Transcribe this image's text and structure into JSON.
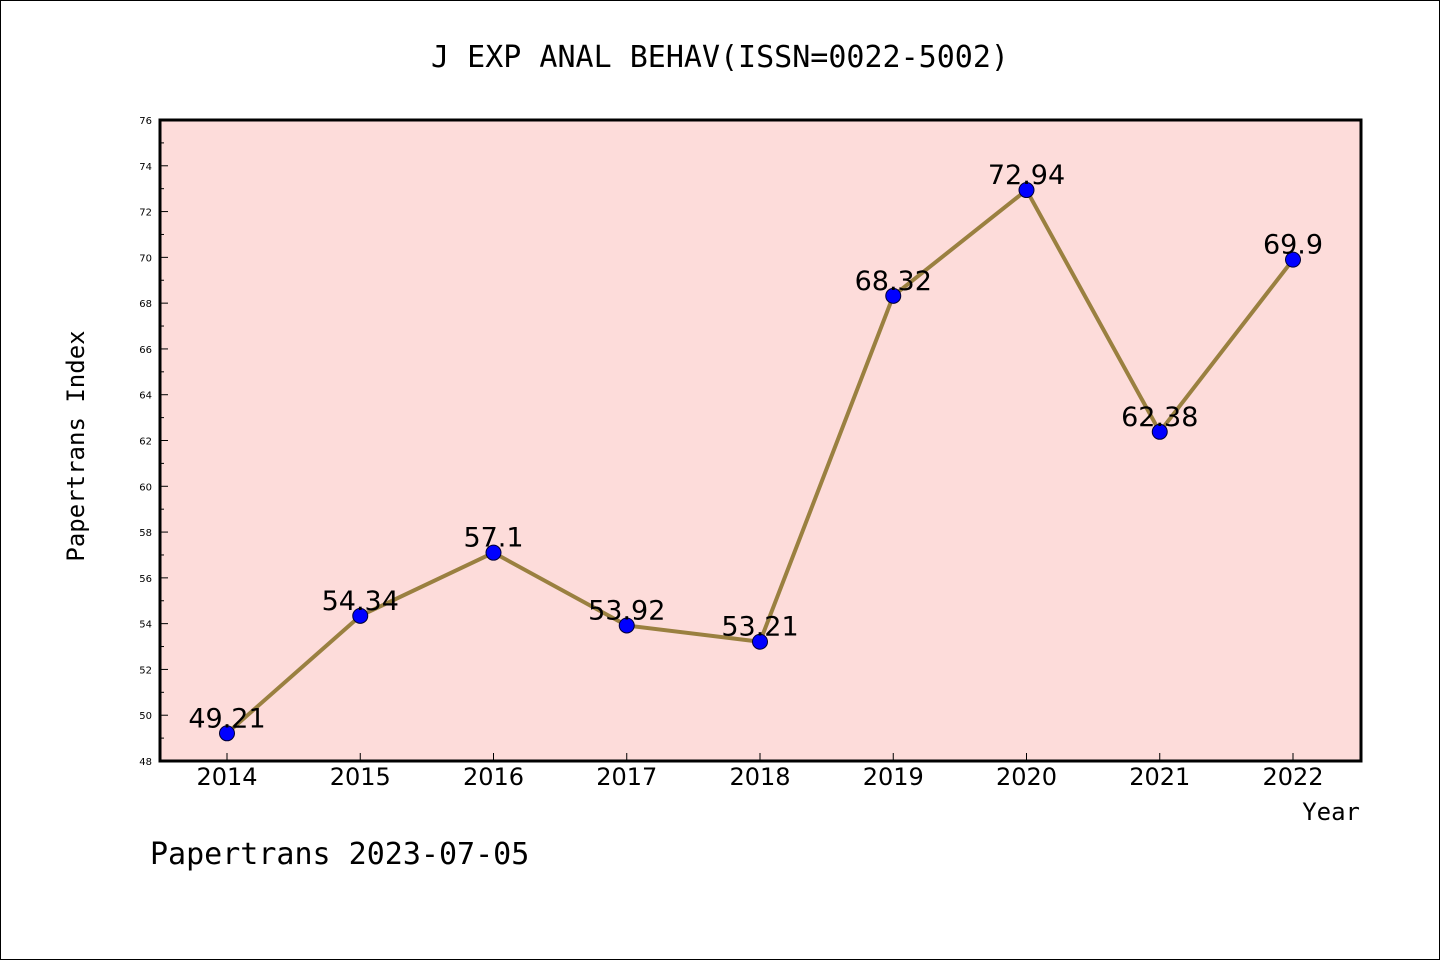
{
  "chart_data": {
    "type": "line",
    "title": "J EXP ANAL BEHAV(ISSN=0022-5002)",
    "xlabel": "Year",
    "ylabel": "Papertrans Index",
    "categories": [
      "2014",
      "2015",
      "2016",
      "2017",
      "2018",
      "2019",
      "2020",
      "2021",
      "2022"
    ],
    "series": [
      {
        "values": [
          49.21,
          54.34,
          57.1,
          53.92,
          53.21,
          68.32,
          72.94,
          62.38,
          69.9
        ],
        "labels": [
          "49.21",
          "54.34",
          "57.1",
          "53.92",
          "53.21",
          "68.32",
          "72.94",
          "62.38",
          "69.9"
        ]
      }
    ],
    "ylim": [
      48,
      76
    ],
    "yticks": [
      "48",
      "50",
      "52",
      "54",
      "56",
      "58",
      "60",
      "62",
      "64",
      "66",
      "68",
      "70",
      "72",
      "74",
      "76"
    ],
    "grid": false,
    "colors": {
      "plot_background": "#fddcda",
      "line": "#9a8040",
      "marker": "#0000ff"
    }
  },
  "footer": "Papertrans 2023-07-05"
}
